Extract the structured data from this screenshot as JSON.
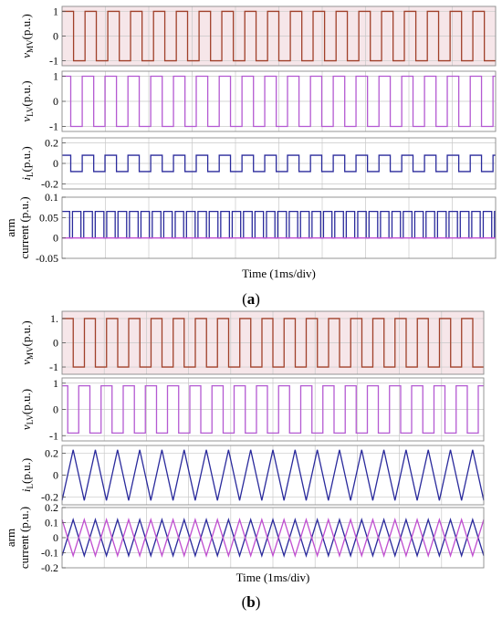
{
  "figure": {
    "panel_a_caption_prefix": "(",
    "panel_a_caption_letter": "a",
    "panel_a_caption_suffix": ")",
    "panel_b_caption_prefix": "(",
    "panel_b_caption_letter": "b",
    "panel_b_caption_suffix": ")"
  },
  "colors": {
    "vmv": "#a0402a",
    "vlv": "#b45ad2",
    "il": "#2a2a9c",
    "arm1": "#2a2a9c",
    "arm2": "#c04fd0",
    "plot_border": "#8a8a8a",
    "grid": "#c8c8c8",
    "pink_fill": "#f6e6e9"
  },
  "chart_data": [
    {
      "panel": "a",
      "xlabel": "Time (1ms/div)",
      "grid": true,
      "x_divisions": 10,
      "subplots": [
        {
          "type": "line",
          "ylabel_main": "v",
          "ylabel_sub": "MV",
          "ylabel_unit": "(p.u.)",
          "ylim": [
            -1.2,
            1.2
          ],
          "yticks": [
            "1",
            "0",
            "-1"
          ],
          "ytick_values": [
            1,
            0,
            -1
          ],
          "series": [
            {
              "waveform": "square",
              "cycles": 19,
              "amplitude": 1,
              "offset": 0,
              "duty": 0.5,
              "phase": 0,
              "color_key": "vmv",
              "fill": true
            }
          ]
        },
        {
          "type": "line",
          "ylabel_main": "v",
          "ylabel_sub": "LV",
          "ylabel_unit": "(p.u.)",
          "ylim": [
            -1.2,
            1.2
          ],
          "yticks": [
            "1",
            "0",
            "-1"
          ],
          "ytick_values": [
            1,
            0,
            -1
          ],
          "series": [
            {
              "waveform": "square",
              "cycles": 19,
              "amplitude": 1,
              "offset": 0,
              "duty": 0.5,
              "phase": 0.12,
              "color_key": "vlv",
              "fill": false
            }
          ]
        },
        {
          "type": "line",
          "ylabel_main": "i",
          "ylabel_sub": "L",
          "ylabel_unit": "(p.u.)",
          "ylim": [
            -0.25,
            0.25
          ],
          "yticks": [
            "0.2",
            "0",
            "-0.2"
          ],
          "ytick_values": [
            0.2,
            0,
            -0.2
          ],
          "series": [
            {
              "waveform": "square",
              "cycles": 19,
              "amplitude": 0.08,
              "offset": 0,
              "duty": 0.5,
              "phase": 0.12,
              "color_key": "il",
              "fill": false
            }
          ]
        },
        {
          "type": "line",
          "ylabel_lines": [
            "arm",
            "current (p.u.)"
          ],
          "ylim": [
            -0.05,
            0.1
          ],
          "yticks": [
            "0.1",
            "0.05",
            "0",
            "-0.05"
          ],
          "ytick_values": [
            0.1,
            0.05,
            0,
            -0.05
          ],
          "series": [
            {
              "waveform": "pulse",
              "cycles": 38,
              "high": 0.065,
              "low": 0.0,
              "duty": 0.75,
              "phase": 0.1,
              "color_key": "arm1",
              "fill": false
            },
            {
              "waveform": "pulse",
              "cycles": 38,
              "high": 0.0,
              "low": 0.0,
              "duty": 0.5,
              "phase": 0.6,
              "color_key": "arm2",
              "fill": false
            }
          ]
        }
      ]
    },
    {
      "panel": "b",
      "xlabel": "Time (1ms/div)",
      "grid": true,
      "x_divisions": 10,
      "subplots": [
        {
          "type": "line",
          "ylabel_main": "v",
          "ylabel_sub": "MV",
          "ylabel_unit": "(p.u.)",
          "ylim": [
            -1.3,
            1.3
          ],
          "yticks": [
            "1.",
            "0",
            "-1"
          ],
          "ytick_values": [
            1,
            0,
            -1
          ],
          "series": [
            {
              "waveform": "square",
              "cycles": 19,
              "amplitude": 1,
              "offset": 0,
              "duty": 0.5,
              "phase": 0,
              "color_key": "vmv",
              "fill": true
            }
          ]
        },
        {
          "type": "line",
          "ylabel_main": "v",
          "ylabel_sub": "LV",
          "ylabel_unit": "(p.u.)",
          "ylim": [
            -1.2,
            1.2
          ],
          "yticks": [
            "1",
            "0",
            "-1"
          ],
          "ytick_values": [
            1,
            0,
            -1
          ],
          "series": [
            {
              "waveform": "square",
              "cycles": 19,
              "amplitude": 0.9,
              "offset": 0,
              "duty": 0.5,
              "phase": 0.25,
              "color_key": "vlv",
              "fill": false
            }
          ]
        },
        {
          "type": "line",
          "ylabel_main": "i",
          "ylabel_sub": "L",
          "ylabel_unit": "(p.u.)",
          "ylim": [
            -0.27,
            0.27
          ],
          "yticks": [
            "0.2",
            "0",
            "-0.2"
          ],
          "ytick_values": [
            0.2,
            0,
            -0.2
          ],
          "series": [
            {
              "waveform": "triangle",
              "cycles": 19,
              "amplitude": 0.23,
              "offset": 0,
              "phase": 0,
              "color_key": "il",
              "fill": false
            }
          ]
        },
        {
          "type": "line",
          "ylabel_lines": [
            "arm",
            "current (p.u.)"
          ],
          "ylim": [
            -0.2,
            0.2
          ],
          "yticks": [
            "0.2",
            "0.1",
            "0",
            "-0.1",
            "-0.2"
          ],
          "ytick_values": [
            0.2,
            0.1,
            0,
            -0.1,
            -0.2
          ],
          "series": [
            {
              "waveform": "triangle",
              "cycles": 19,
              "amplitude": 0.12,
              "offset": 0,
              "phase": 0,
              "color_key": "arm1",
              "fill": false
            },
            {
              "waveform": "triangle",
              "cycles": 19,
              "amplitude": 0.12,
              "offset": 0,
              "phase": 0.5,
              "color_key": "arm2",
              "fill": false
            }
          ]
        }
      ]
    }
  ]
}
